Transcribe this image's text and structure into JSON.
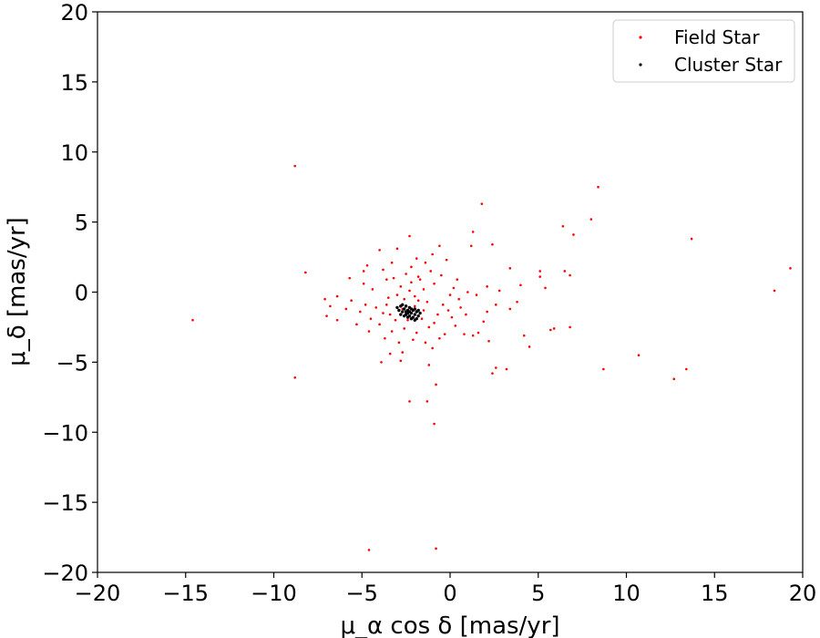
{
  "chart_data": {
    "type": "scatter",
    "title": "",
    "xlabel": "μ_α cos δ [mas/yr]",
    "ylabel": "μ_δ [mas/yr]",
    "xlim": [
      -20,
      20
    ],
    "ylim": [
      -20,
      20
    ],
    "xticks": [
      -20,
      -15,
      -10,
      -5,
      0,
      5,
      10,
      15,
      20
    ],
    "yticks": [
      -20,
      -15,
      -10,
      -5,
      0,
      5,
      10,
      15,
      20
    ],
    "xtick_labels": [
      "−20",
      "−15",
      "−10",
      "−5",
      "0",
      "5",
      "10",
      "15",
      "20"
    ],
    "ytick_labels": [
      "−20",
      "−15",
      "−10",
      "−5",
      "0",
      "5",
      "10",
      "15",
      "20"
    ],
    "grid": false,
    "legend_position": "top-right",
    "series": [
      {
        "name": "Field Star",
        "color": "#ff0000",
        "marker": "dot",
        "points": [
          [
            -14.6,
            -2.0
          ],
          [
            -8.8,
            9.0
          ],
          [
            -8.8,
            -6.1
          ],
          [
            -8.2,
            1.4
          ],
          [
            -4.6,
            -18.4
          ],
          [
            -0.8,
            -18.3
          ],
          [
            -0.6,
            3.3
          ],
          [
            1.3,
            4.3
          ],
          [
            1.2,
            3.3
          ],
          [
            1.8,
            6.3
          ],
          [
            2.4,
            3.4
          ],
          [
            3.4,
            1.7
          ],
          [
            5.1,
            1.5
          ],
          [
            5.1,
            1.1
          ],
          [
            6.4,
            4.7
          ],
          [
            6.5,
            1.5
          ],
          [
            7.0,
            4.1
          ],
          [
            6.8,
            1.2
          ],
          [
            8.0,
            5.2
          ],
          [
            8.4,
            7.5
          ],
          [
            13.7,
            3.8
          ],
          [
            19.3,
            1.7
          ],
          [
            18.4,
            0.1
          ],
          [
            10.7,
            -4.5
          ],
          [
            8.7,
            -5.5
          ],
          [
            12.7,
            -6.2
          ],
          [
            13.4,
            -5.5
          ],
          [
            6.8,
            -2.5
          ],
          [
            5.9,
            -2.6
          ],
          [
            5.7,
            -2.7
          ],
          [
            4.5,
            -3.9
          ],
          [
            4.2,
            -3.1
          ],
          [
            3.8,
            -0.7
          ],
          [
            3.2,
            -5.5
          ],
          [
            2.6,
            -5.4
          ],
          [
            2.4,
            -5.8
          ],
          [
            2.1,
            -1.4
          ],
          [
            1.3,
            -3.1
          ],
          [
            0.8,
            -3.0
          ],
          [
            -0.8,
            -6.6
          ],
          [
            -0.9,
            -9.4
          ],
          [
            -1.3,
            -7.8
          ],
          [
            -2.3,
            -7.8
          ],
          [
            -2.3,
            4.0
          ],
          [
            -3.0,
            3.1
          ],
          [
            -1.4,
            2.1
          ],
          [
            -1.8,
            1.1
          ],
          [
            -4.0,
            3.0
          ],
          [
            -4.7,
            1.9
          ],
          [
            -4.9,
            1.5
          ],
          [
            -5.7,
            1.0
          ],
          [
            -5.9,
            -1.2
          ],
          [
            -6.4,
            -2.0
          ],
          [
            -6.8,
            -1.0
          ],
          [
            -7.1,
            -0.5
          ],
          [
            -7.0,
            -1.7
          ],
          [
            -6.4,
            -0.3
          ],
          [
            -3.9,
            -5.0
          ],
          [
            -3.4,
            -4.4
          ],
          [
            -2.7,
            -4.3
          ],
          [
            -0.3,
            -3.0
          ],
          [
            0.1,
            -1.8
          ],
          [
            0.5,
            -0.5
          ],
          [
            1.0,
            0.0
          ],
          [
            2.1,
            0.4
          ],
          [
            2.6,
            -0.9
          ],
          [
            3.4,
            -1.2
          ],
          [
            4.0,
            0.5
          ],
          [
            5.4,
            0.3
          ],
          [
            -1.5,
            0.2
          ],
          [
            -2.0,
            -0.3
          ],
          [
            -2.8,
            0.4
          ],
          [
            -3.5,
            -0.4
          ],
          [
            -3.8,
            -1.5
          ],
          [
            -4.0,
            -2.3
          ],
          [
            -3.3,
            -2.8
          ],
          [
            -2.6,
            -2.6
          ],
          [
            -1.9,
            -2.9
          ],
          [
            -1.2,
            -2.5
          ],
          [
            -0.7,
            -1.6
          ],
          [
            -0.4,
            -0.9
          ],
          [
            -0.9,
            0.6
          ],
          [
            -1.7,
            0.9
          ],
          [
            -2.5,
            1.3
          ],
          [
            -3.2,
            1.0
          ],
          [
            -4.4,
            0.2
          ],
          [
            -4.8,
            -0.9
          ],
          [
            -4.5,
            -1.9
          ],
          [
            -3.7,
            -3.3
          ],
          [
            -2.9,
            -3.6
          ],
          [
            -2.1,
            -3.4
          ],
          [
            -1.4,
            -3.6
          ],
          [
            -0.6,
            -3.3
          ],
          [
            0.3,
            -2.4
          ],
          [
            0.6,
            -1.1
          ],
          [
            0.2,
            0.3
          ],
          [
            -0.5,
            1.2
          ],
          [
            -1.1,
            1.5
          ],
          [
            -2.2,
            0.7
          ],
          [
            -3.0,
            -0.2
          ],
          [
            -3.6,
            -0.9
          ],
          [
            -2.4,
            -2.0
          ],
          [
            -1.6,
            -1.9
          ],
          [
            -0.9,
            -2.2
          ],
          [
            -1.3,
            -0.7
          ],
          [
            -2.7,
            -1.2
          ],
          [
            -3.1,
            -2.0
          ],
          [
            -4.2,
            -1.1
          ],
          [
            -5.3,
            -2.3
          ],
          [
            -5.6,
            -0.6
          ],
          [
            -4.9,
            0.6
          ],
          [
            -3.8,
            1.6
          ],
          [
            -1.0,
            -4.0
          ],
          [
            0.9,
            -1.6
          ],
          [
            1.5,
            -0.2
          ],
          [
            1.9,
            -2.1
          ],
          [
            2.8,
            0.1
          ],
          [
            -0.2,
            2.3
          ],
          [
            -1.9,
            2.4
          ],
          [
            -3.3,
            2.1
          ],
          [
            -2.0,
            -1.0
          ],
          [
            -1.8,
            -0.6
          ],
          [
            -2.3,
            0.1
          ],
          [
            -2.6,
            -0.5
          ],
          [
            -1.5,
            -1.3
          ],
          [
            -3.4,
            -1.6
          ],
          [
            -4.6,
            -2.8
          ],
          [
            -5.1,
            -1.4
          ],
          [
            0.0,
            -0.2
          ],
          [
            -0.1,
            -1.3
          ],
          [
            0.4,
            0.9
          ],
          [
            1.6,
            -2.9
          ],
          [
            2.2,
            -3.5
          ],
          [
            -2.8,
            -4.9
          ],
          [
            -1.2,
            -5.2
          ],
          [
            -3.6,
            0.9
          ],
          [
            -2.2,
            1.8
          ],
          [
            -1.0,
            2.7
          ]
        ]
      },
      {
        "name": "Cluster Star",
        "color": "#000000",
        "marker": "dot",
        "points": [
          [
            -2.2,
            -1.5
          ],
          [
            -2.0,
            -1.6
          ],
          [
            -2.4,
            -1.3
          ],
          [
            -2.6,
            -1.2
          ],
          [
            -2.8,
            -1.0
          ],
          [
            -2.5,
            -1.6
          ],
          [
            -2.1,
            -1.8
          ],
          [
            -1.9,
            -1.4
          ],
          [
            -2.3,
            -1.1
          ],
          [
            -2.7,
            -1.4
          ],
          [
            -2.0,
            -1.2
          ],
          [
            -1.8,
            -1.7
          ],
          [
            -2.2,
            -1.9
          ],
          [
            -2.5,
            -1.0
          ],
          [
            -2.9,
            -1.3
          ],
          [
            -2.3,
            -1.7
          ],
          [
            -1.7,
            -1.5
          ],
          [
            -2.4,
            -1.5
          ],
          [
            -2.6,
            -1.7
          ],
          [
            -2.1,
            -1.3
          ],
          [
            -2.8,
            -1.6
          ],
          [
            -1.9,
            -1.9
          ],
          [
            -2.0,
            -2.0
          ],
          [
            -2.7,
            -0.9
          ],
          [
            -3.0,
            -1.1
          ],
          [
            -2.2,
            -1.2
          ],
          [
            -2.4,
            -1.8
          ],
          [
            -1.8,
            -1.3
          ],
          [
            -2.5,
            -1.4
          ],
          [
            -2.3,
            -1.4
          ]
        ]
      }
    ]
  }
}
